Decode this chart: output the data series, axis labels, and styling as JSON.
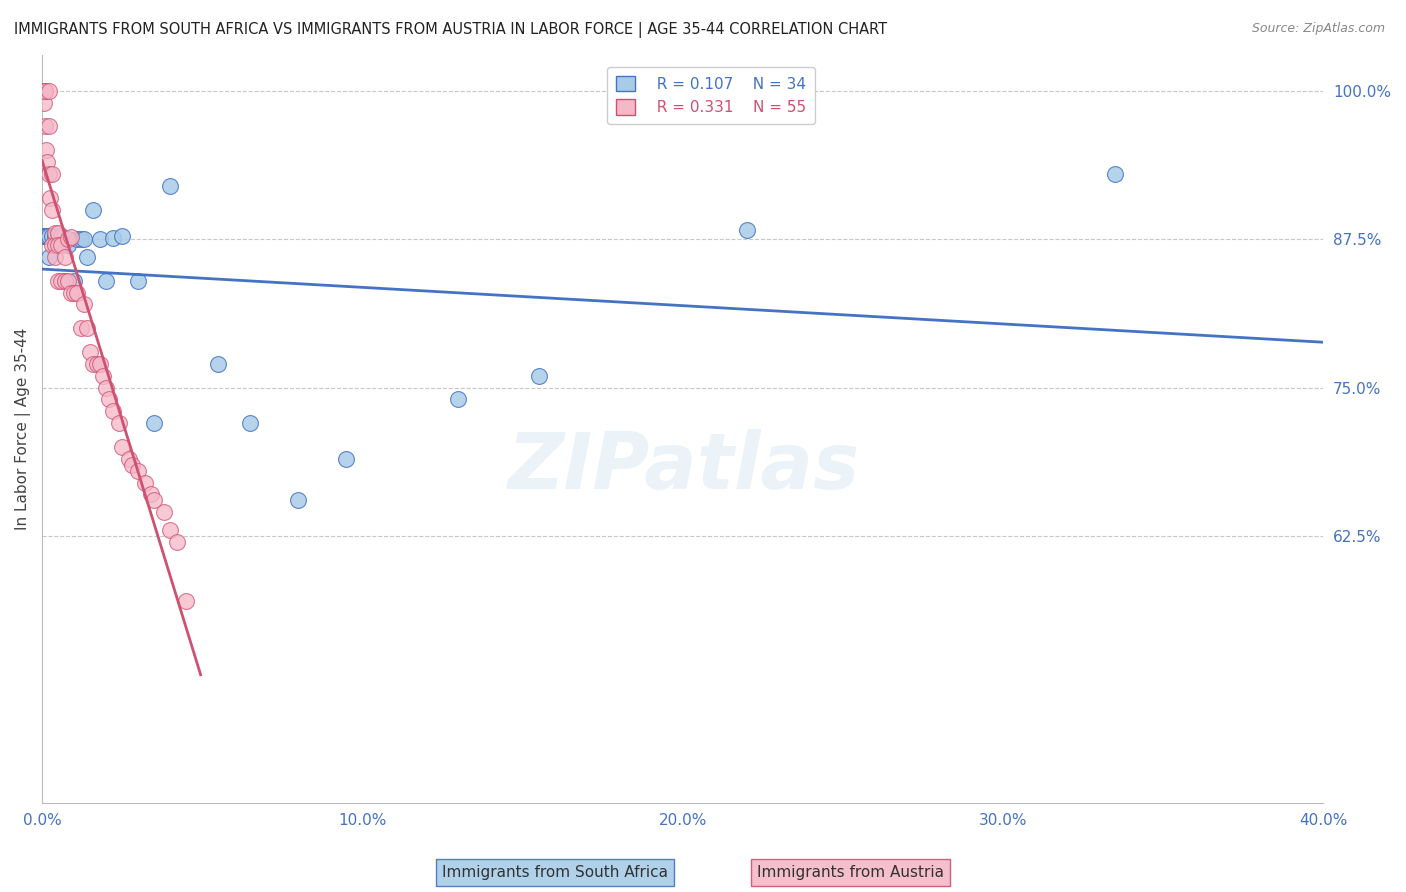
{
  "title": "IMMIGRANTS FROM SOUTH AFRICA VS IMMIGRANTS FROM AUSTRIA IN LABOR FORCE | AGE 35-44 CORRELATION CHART",
  "source": "Source: ZipAtlas.com",
  "ylabel": "In Labor Force | Age 35-44",
  "legend_labels": [
    "Immigrants from South Africa",
    "Immigrants from Austria"
  ],
  "legend_R": [
    "R = 0.107",
    "R = 0.331"
  ],
  "legend_N": [
    "N = 34",
    "N = 55"
  ],
  "blue_color": "#a8cce8",
  "pink_color": "#f4b8c8",
  "blue_line_color": "#4472c4",
  "pink_line_color": "#d05070",
  "axis_label_color": "#4472c4",
  "title_color": "#222222",
  "grid_color": "#c8c8c8",
  "watermark": "ZIPatlas",
  "xlim": [
    0.0,
    0.4
  ],
  "ylim": [
    0.4,
    1.03
  ],
  "xtick_vals": [
    0.0,
    0.1,
    0.2,
    0.3,
    0.4
  ],
  "yticks_right": [
    1.0,
    0.875,
    0.75,
    0.625
  ],
  "yticklabels_right": [
    "100.0%",
    "87.5%",
    "75.0%",
    "62.5%"
  ],
  "blue_x": [
    0.0005,
    0.0008,
    0.001,
    0.0012,
    0.0015,
    0.002,
    0.002,
    0.003,
    0.004,
    0.005,
    0.006,
    0.007,
    0.008,
    0.01,
    0.011,
    0.012,
    0.013,
    0.014,
    0.016,
    0.018,
    0.02,
    0.022,
    0.025,
    0.03,
    0.035,
    0.04,
    0.055,
    0.065,
    0.08,
    0.095,
    0.13,
    0.155,
    0.22,
    0.335
  ],
  "blue_y": [
    0.878,
    0.878,
    0.878,
    0.878,
    0.878,
    0.878,
    0.86,
    0.878,
    0.878,
    0.878,
    0.878,
    0.84,
    0.87,
    0.84,
    0.875,
    0.875,
    0.875,
    0.86,
    0.9,
    0.875,
    0.84,
    0.876,
    0.878,
    0.84,
    0.72,
    0.92,
    0.77,
    0.72,
    0.655,
    0.69,
    0.74,
    0.76,
    0.883,
    0.93
  ],
  "pink_x": [
    0.0004,
    0.0005,
    0.0006,
    0.0007,
    0.0008,
    0.001,
    0.001,
    0.0012,
    0.0015,
    0.002,
    0.002,
    0.002,
    0.0025,
    0.003,
    0.003,
    0.003,
    0.004,
    0.004,
    0.004,
    0.005,
    0.005,
    0.005,
    0.006,
    0.006,
    0.007,
    0.007,
    0.008,
    0.008,
    0.009,
    0.009,
    0.01,
    0.011,
    0.012,
    0.013,
    0.014,
    0.015,
    0.016,
    0.017,
    0.018,
    0.019,
    0.02,
    0.021,
    0.022,
    0.024,
    0.025,
    0.027,
    0.028,
    0.03,
    0.032,
    0.034,
    0.035,
    0.038,
    0.04,
    0.042,
    0.045
  ],
  "pink_y": [
    1.0,
    1.0,
    1.0,
    0.99,
    1.0,
    1.0,
    0.97,
    0.95,
    0.94,
    1.0,
    0.97,
    0.93,
    0.91,
    0.93,
    0.9,
    0.87,
    0.88,
    0.87,
    0.86,
    0.88,
    0.87,
    0.84,
    0.87,
    0.84,
    0.86,
    0.84,
    0.875,
    0.84,
    0.877,
    0.83,
    0.83,
    0.83,
    0.8,
    0.82,
    0.8,
    0.78,
    0.77,
    0.77,
    0.77,
    0.76,
    0.75,
    0.74,
    0.73,
    0.72,
    0.7,
    0.69,
    0.685,
    0.68,
    0.67,
    0.66,
    0.655,
    0.645,
    0.63,
    0.62,
    0.57
  ]
}
